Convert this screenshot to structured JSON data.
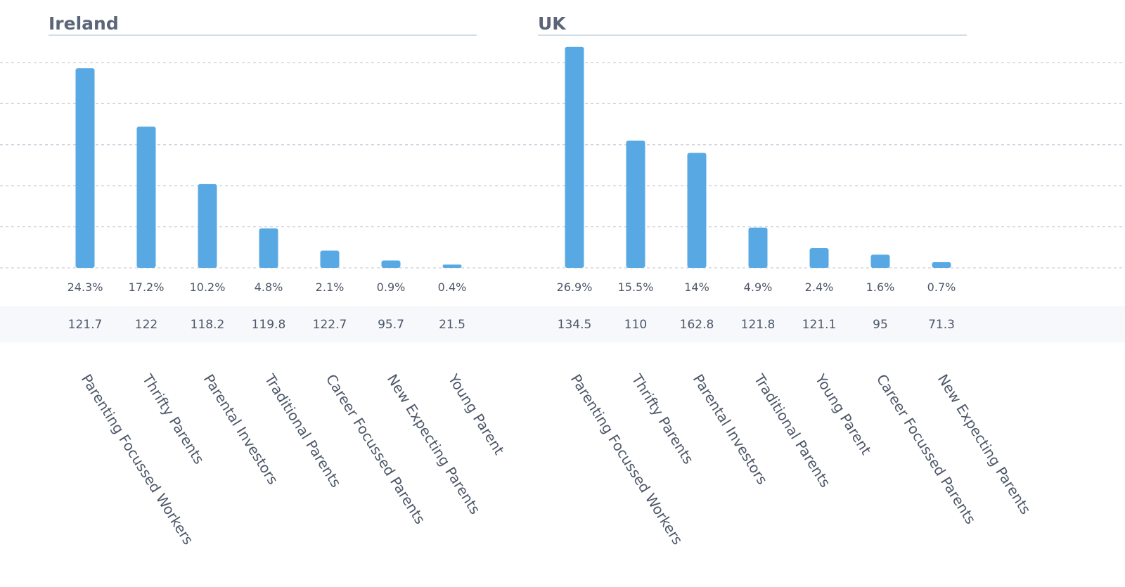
{
  "chart_data": [
    {
      "type": "bar",
      "title": "Ireland",
      "categories": [
        "Parenting Focussed Workers",
        "Thrifty Parents",
        "Parental Investors",
        "Traditional Parents",
        "Career Focussed Parents",
        "New Expecting Parents",
        "Young Parent"
      ],
      "values": [
        24.3,
        17.2,
        10.2,
        4.8,
        2.1,
        0.9,
        0.4
      ],
      "value_labels": [
        "24.3%",
        "17.2%",
        "10.2%",
        "4.8%",
        "2.1%",
        "0.9%",
        "0.4%"
      ],
      "index_labels": [
        "121.7",
        "122",
        "118.2",
        "119.8",
        "122.7",
        "95.7",
        "21.5"
      ],
      "ylim": [
        0,
        25
      ],
      "grid": true
    },
    {
      "type": "bar",
      "title": "UK",
      "categories": [
        "Parenting Focussed Workers",
        "Thrifty Parents",
        "Parental Investors",
        "Traditional Parents",
        "Young Parent",
        "Career Focussed Parents",
        "New Expecting Parents"
      ],
      "values": [
        26.9,
        15.5,
        14,
        4.9,
        2.4,
        1.6,
        0.7
      ],
      "value_labels": [
        "26.9%",
        "15.5%",
        "14%",
        "4.9%",
        "2.4%",
        "1.6%",
        "0.7%"
      ],
      "index_labels": [
        "134.5",
        "110",
        "162.8",
        "121.8",
        "121.1",
        "95",
        "71.3"
      ],
      "ylim": [
        0,
        25
      ],
      "grid": true
    }
  ],
  "colors": {
    "bar": "#58a9e3",
    "index_band": "#f6f8fb",
    "grid": "#c9cedb",
    "title_rule": "#c6d3e0",
    "title_text": "#5b6577",
    "label_text": "#4d5768"
  }
}
